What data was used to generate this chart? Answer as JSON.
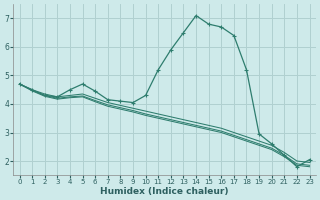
{
  "xlabel": "Humidex (Indice chaleur)",
  "background_color": "#ceeaea",
  "grid_color": "#b0d0d0",
  "line_color": "#2e7d6e",
  "xlim": [
    -0.5,
    23.5
  ],
  "ylim": [
    1.5,
    7.5
  ],
  "yticks": [
    2,
    3,
    4,
    5,
    6,
    7
  ],
  "xticks": [
    0,
    1,
    2,
    3,
    4,
    5,
    6,
    7,
    8,
    9,
    10,
    11,
    12,
    13,
    14,
    15,
    16,
    17,
    18,
    19,
    20,
    21,
    22,
    23
  ],
  "series": [
    {
      "x": [
        0,
        1,
        2,
        3,
        4,
        5,
        6,
        7,
        8,
        9,
        10,
        11,
        12,
        13,
        14,
        15,
        16,
        17,
        18,
        19,
        20,
        21,
        22,
        23
      ],
      "y": [
        4.7,
        4.5,
        4.3,
        4.25,
        4.5,
        4.7,
        4.45,
        4.15,
        4.1,
        4.05,
        4.3,
        5.2,
        5.9,
        6.5,
        7.1,
        6.8,
        6.7,
        6.4,
        5.2,
        2.95,
        2.6,
        2.2,
        1.8,
        2.05
      ],
      "marker": true
    },
    {
      "x": [
        0,
        1,
        2,
        3,
        4,
        5,
        6,
        7,
        8,
        9,
        10,
        11,
        12,
        13,
        14,
        15,
        16,
        17,
        18,
        19,
        20,
        21,
        22,
        23
      ],
      "y": [
        4.7,
        4.5,
        4.35,
        4.25,
        4.3,
        4.35,
        4.2,
        4.05,
        3.95,
        3.85,
        3.75,
        3.65,
        3.55,
        3.45,
        3.35,
        3.25,
        3.15,
        3.0,
        2.85,
        2.7,
        2.55,
        2.3,
        2.0,
        1.95
      ],
      "marker": false
    },
    {
      "x": [
        0,
        1,
        2,
        3,
        4,
        5,
        6,
        7,
        8,
        9,
        10,
        11,
        12,
        13,
        14,
        15,
        16,
        17,
        18,
        19,
        20,
        21,
        22,
        23
      ],
      "y": [
        4.7,
        4.48,
        4.3,
        4.2,
        4.25,
        4.28,
        4.12,
        3.97,
        3.87,
        3.77,
        3.65,
        3.55,
        3.45,
        3.35,
        3.25,
        3.15,
        3.05,
        2.9,
        2.75,
        2.6,
        2.45,
        2.2,
        1.9,
        1.85
      ],
      "marker": false
    },
    {
      "x": [
        0,
        1,
        2,
        3,
        4,
        5,
        6,
        7,
        8,
        9,
        10,
        11,
        12,
        13,
        14,
        15,
        16,
        17,
        18,
        19,
        20,
        21,
        22,
        23
      ],
      "y": [
        4.7,
        4.46,
        4.27,
        4.17,
        4.22,
        4.25,
        4.08,
        3.92,
        3.82,
        3.72,
        3.6,
        3.5,
        3.4,
        3.3,
        3.2,
        3.1,
        3.0,
        2.85,
        2.7,
        2.55,
        2.4,
        2.15,
        1.85,
        1.8
      ],
      "marker": false
    }
  ]
}
